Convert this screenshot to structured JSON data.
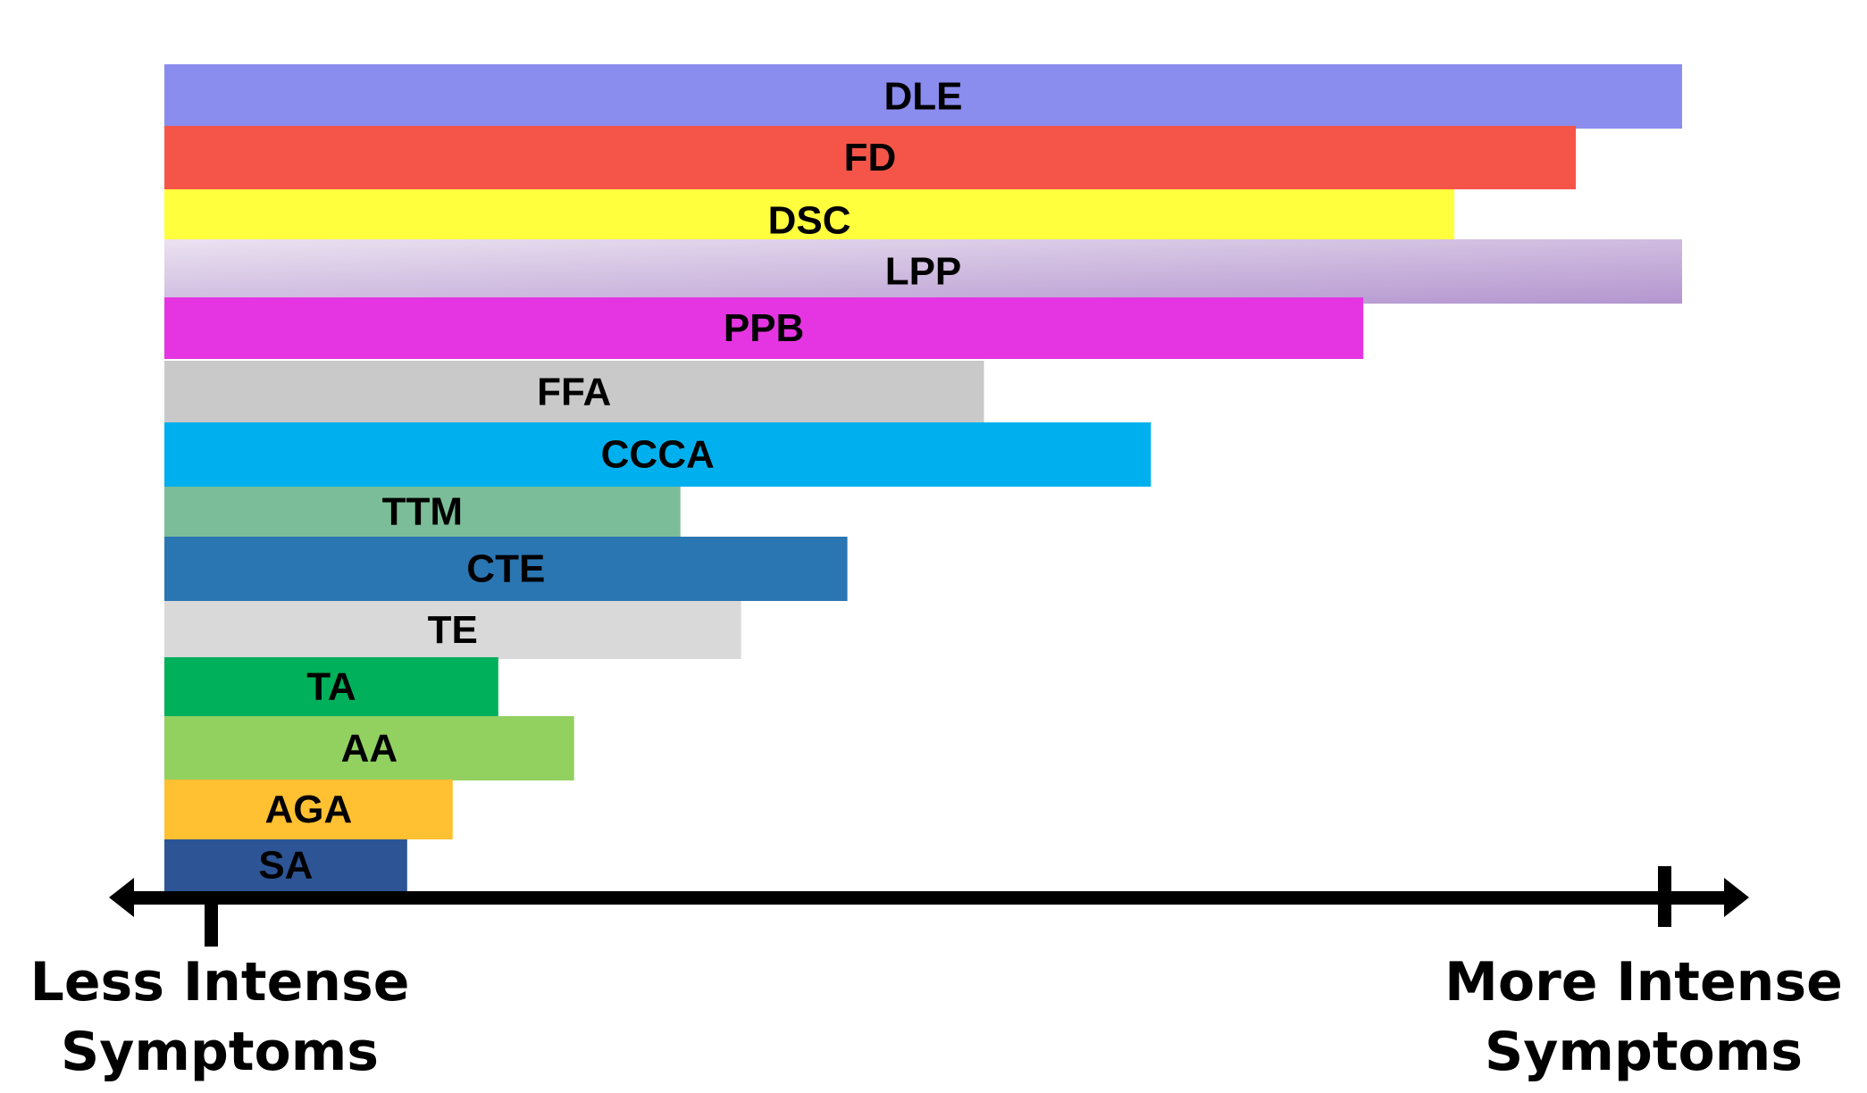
{
  "chart_data": {
    "type": "bar",
    "orientation": "horizontal",
    "categories": [
      "DLE",
      "FD",
      "DSC",
      "LPP",
      "PPB",
      "FFA",
      "CCCA",
      "TTM",
      "CTE",
      "TE",
      "TA",
      "AA",
      "AGA",
      "SA"
    ],
    "values": [
      100,
      93,
      85,
      100,
      79,
      54,
      65,
      34,
      45,
      38,
      22,
      27,
      19,
      16
    ],
    "value_unit": "percent of scale (less to more intense)",
    "colors": [
      "#8a8cee",
      "#f55549",
      "#ffff3e",
      "#d4c4e4",
      "#e535e2",
      "#c9c9c9",
      "#00b0ee",
      "#7bbd98",
      "#2a76b3",
      "#d9d9d9",
      "#00b05a",
      "#92d060",
      "#ffc032",
      "#2d5596"
    ],
    "lpp_gradient": [
      "#ebe2f1",
      "#b496cf"
    ],
    "xlim": [
      0,
      100
    ],
    "grid": false,
    "legend": "none",
    "axis": {
      "left_label_line1": "Less Intense",
      "left_label_line2": "Symptoms",
      "right_label_line1": "More Intense",
      "right_label_line2": "Symptoms"
    }
  }
}
